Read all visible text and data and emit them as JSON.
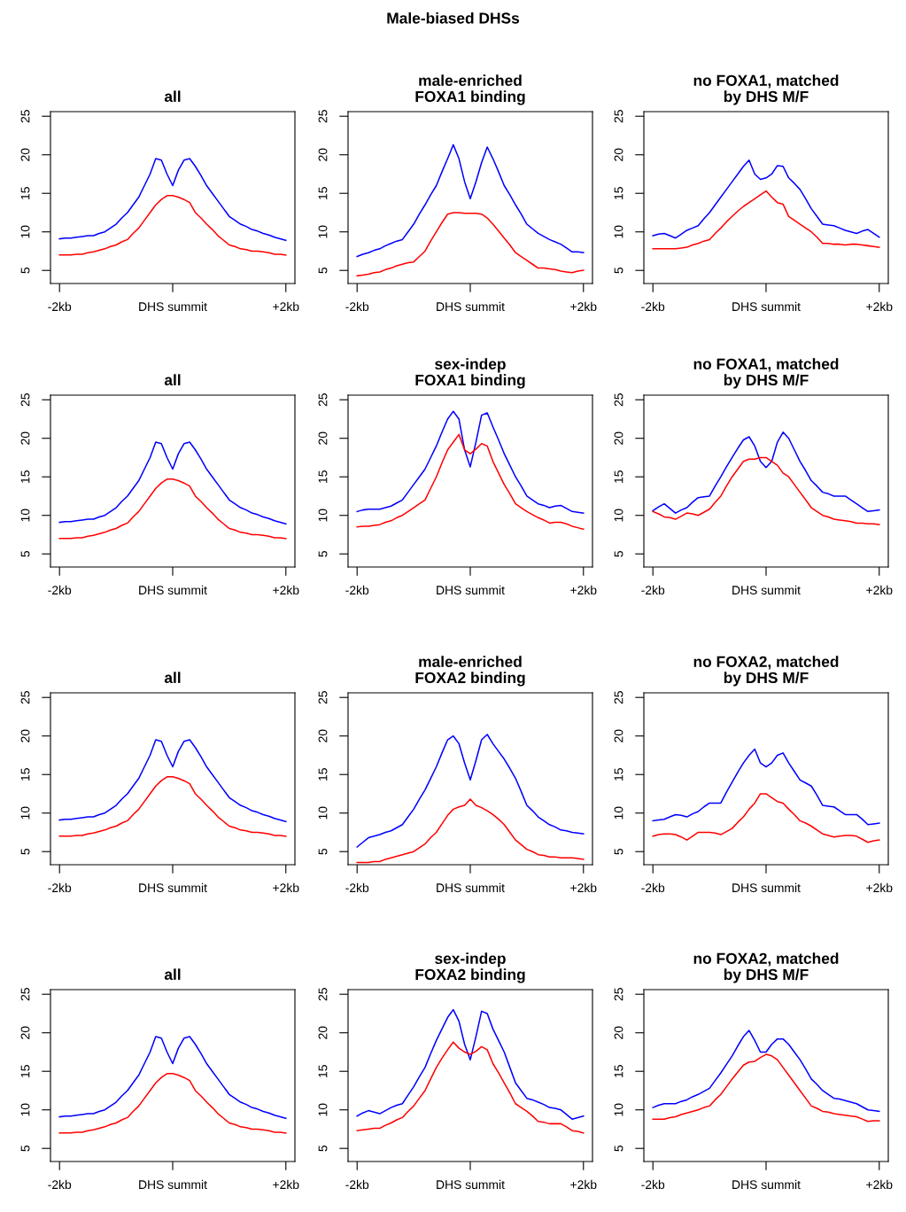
{
  "chart_data": [
    {
      "type": "line",
      "title": "all",
      "categories": [
        "-2kb",
        null,
        null,
        null,
        null,
        null,
        null,
        null,
        null,
        null,
        null,
        null,
        null,
        null,
        null,
        null,
        null,
        null,
        null,
        null,
        "DHS summit",
        null,
        null,
        null,
        null,
        null,
        null,
        null,
        null,
        null,
        null,
        null,
        null,
        null,
        null,
        null,
        null,
        null,
        null,
        null,
        "+2kb"
      ],
      "ylim": [
        3.3,
        25.6
      ],
      "yticks": [
        5,
        10,
        15,
        20,
        25
      ],
      "series": [
        {
          "color": "#0000ff",
          "values": [
            9.1,
            9.2,
            9.2,
            9.3,
            9.4,
            9.5,
            9.5,
            9.8,
            10,
            10.5,
            11,
            11.8,
            12.5,
            13.5,
            14.5,
            16,
            17.5,
            19.5,
            19.3,
            17.5,
            16,
            18,
            19.3,
            19.5,
            18.5,
            17.3,
            16,
            15,
            14,
            13,
            12,
            11.5,
            11,
            10.7,
            10.3,
            10.1,
            9.8,
            9.6,
            9.3,
            9.1,
            8.9
          ]
        },
        {
          "color": "#ff0000",
          "values": [
            7,
            7,
            7,
            7.1,
            7.1,
            7.3,
            7.4,
            7.6,
            7.8,
            8.1,
            8.3,
            8.7,
            9,
            9.8,
            10.5,
            11.5,
            12.5,
            13.5,
            14.2,
            14.7,
            14.7,
            14.5,
            14.2,
            13.8,
            12.5,
            11.8,
            11,
            10.3,
            9.5,
            8.9,
            8.3,
            8.1,
            7.8,
            7.7,
            7.5,
            7.5,
            7.4,
            7.3,
            7.1,
            7.1,
            7
          ]
        }
      ]
    },
    {
      "type": "line",
      "title": "male-enriched\nFOXA1 binding",
      "annotations": [
        "Male-biased DHSs"
      ],
      "categories": [
        "-2kb",
        null,
        null,
        null,
        null,
        null,
        null,
        null,
        null,
        null,
        null,
        null,
        null,
        null,
        null,
        null,
        null,
        null,
        null,
        null,
        "DHS summit",
        null,
        null,
        null,
        null,
        null,
        null,
        null,
        null,
        null,
        null,
        null,
        null,
        null,
        null,
        null,
        null,
        null,
        null,
        null,
        "+2kb"
      ],
      "ylim": [
        3.3,
        25.6
      ],
      "yticks": [
        5,
        10,
        15,
        20,
        25
      ],
      "series": [
        {
          "color": "#0000ff",
          "values": [
            6.8,
            7.1,
            7.3,
            7.6,
            7.8,
            8.2,
            8.5,
            8.8,
            9,
            10,
            11,
            12.3,
            13.5,
            14.8,
            16,
            17.8,
            19.5,
            21.3,
            19.5,
            16.5,
            14.3,
            16.5,
            19,
            21,
            19.5,
            17.8,
            16,
            14.8,
            13.5,
            12.3,
            11,
            10.4,
            9.8,
            9.4,
            9,
            8.7,
            8.4,
            7.9,
            7.4,
            7.4,
            7.3
          ]
        },
        {
          "color": "#ff0000",
          "values": [
            4.3,
            4.4,
            4.5,
            4.7,
            4.8,
            5.1,
            5.3,
            5.6,
            5.8,
            6,
            6.1,
            6.8,
            7.5,
            8.8,
            10,
            11.2,
            12.3,
            12.5,
            12.5,
            12.4,
            12.4,
            12.4,
            12.3,
            11.8,
            11,
            10.1,
            9.2,
            8.3,
            7.3,
            6.8,
            6.3,
            5.8,
            5.3,
            5.3,
            5.2,
            5.1,
            4.9,
            4.8,
            4.7,
            4.9,
            5
          ]
        }
      ]
    },
    {
      "type": "line",
      "title": "no FOXA1, matched\nby DHS M/F",
      "categories": [
        "-2kb",
        null,
        null,
        null,
        null,
        null,
        null,
        null,
        null,
        null,
        null,
        null,
        null,
        null,
        null,
        null,
        null,
        null,
        null,
        null,
        "DHS summit",
        null,
        null,
        null,
        null,
        null,
        null,
        null,
        null,
        null,
        null,
        null,
        null,
        null,
        null,
        null,
        null,
        null,
        null,
        null,
        "+2kb"
      ],
      "ylim": [
        3.3,
        25.6
      ],
      "yticks": [
        5,
        10,
        15,
        20,
        25
      ],
      "series": [
        {
          "color": "#0000ff",
          "values": [
            9.5,
            9.7,
            9.8,
            9.5,
            9.2,
            9.7,
            10.2,
            10.5,
            10.8,
            11.7,
            12.5,
            13.5,
            14.5,
            15.5,
            16.5,
            17.5,
            18.5,
            19.3,
            17.5,
            16.8,
            17,
            17.5,
            18.6,
            18.5,
            17,
            16.3,
            15.5,
            14.3,
            13,
            12,
            11,
            10.9,
            10.8,
            10.5,
            10.2,
            10,
            9.8,
            10.1,
            10.3,
            9.8,
            9.3
          ]
        },
        {
          "color": "#ff0000",
          "values": [
            7.8,
            7.8,
            7.8,
            7.8,
            7.8,
            7.9,
            8,
            8.3,
            8.5,
            8.8,
            9,
            9.8,
            10.5,
            11.3,
            12,
            12.7,
            13.3,
            13.8,
            14.3,
            14.8,
            15.3,
            14.5,
            13.8,
            13.6,
            12,
            11.5,
            11,
            10.5,
            10,
            9.3,
            8.5,
            8.5,
            8.4,
            8.4,
            8.3,
            8.4,
            8.4,
            8.3,
            8.2,
            8.1,
            8
          ]
        }
      ]
    },
    {
      "type": "line",
      "title": "all",
      "categories": [
        "-2kb",
        null,
        null,
        null,
        null,
        null,
        null,
        null,
        null,
        null,
        null,
        null,
        null,
        null,
        null,
        null,
        null,
        null,
        null,
        null,
        "DHS summit",
        null,
        null,
        null,
        null,
        null,
        null,
        null,
        null,
        null,
        null,
        null,
        null,
        null,
        null,
        null,
        null,
        null,
        null,
        null,
        "+2kb"
      ],
      "ylim": [
        3.3,
        25.6
      ],
      "yticks": [
        5,
        10,
        15,
        20,
        25
      ],
      "series": [
        {
          "color": "#0000ff",
          "values": [
            9.1,
            9.2,
            9.2,
            9.3,
            9.4,
            9.5,
            9.5,
            9.8,
            10,
            10.5,
            11,
            11.8,
            12.5,
            13.5,
            14.5,
            16,
            17.5,
            19.5,
            19.3,
            17.5,
            16,
            18,
            19.3,
            19.5,
            18.5,
            17.3,
            16,
            15,
            14,
            13,
            12,
            11.5,
            11,
            10.7,
            10.3,
            10.1,
            9.8,
            9.6,
            9.3,
            9.1,
            8.9
          ]
        },
        {
          "color": "#ff0000",
          "values": [
            7,
            7,
            7,
            7.1,
            7.1,
            7.3,
            7.4,
            7.6,
            7.8,
            8.1,
            8.3,
            8.7,
            9,
            9.8,
            10.5,
            11.5,
            12.5,
            13.5,
            14.2,
            14.7,
            14.7,
            14.5,
            14.2,
            13.8,
            12.5,
            11.8,
            11,
            10.3,
            9.5,
            8.9,
            8.3,
            8.1,
            7.8,
            7.7,
            7.5,
            7.5,
            7.4,
            7.3,
            7.1,
            7.1,
            7
          ]
        }
      ]
    },
    {
      "type": "line",
      "title": "sex-indep\nFOXA1 binding",
      "categories": [
        "-2kb",
        null,
        null,
        null,
        null,
        null,
        null,
        null,
        null,
        null,
        null,
        null,
        null,
        null,
        null,
        null,
        null,
        null,
        null,
        null,
        "DHS summit",
        null,
        null,
        null,
        null,
        null,
        null,
        null,
        null,
        null,
        null,
        null,
        null,
        null,
        null,
        null,
        null,
        null,
        null,
        null,
        "+2kb"
      ],
      "ylim": [
        3.3,
        25.6
      ],
      "yticks": [
        5,
        10,
        15,
        20,
        25
      ],
      "series": [
        {
          "color": "#0000ff",
          "values": [
            10.5,
            10.7,
            10.8,
            10.8,
            10.8,
            11,
            11.2,
            11.6,
            12,
            13,
            14,
            15,
            16,
            17.5,
            19,
            20.8,
            22.5,
            23.5,
            22.5,
            18.5,
            16.3,
            19.5,
            23,
            23.3,
            21.5,
            19.8,
            18,
            16.5,
            15,
            13.8,
            12.5,
            12,
            11.5,
            11.3,
            11,
            11.2,
            11.3,
            10.9,
            10.5,
            10.4,
            10.3
          ]
        },
        {
          "color": "#ff0000",
          "values": [
            8.5,
            8.6,
            8.6,
            8.7,
            8.8,
            9.1,
            9.3,
            9.7,
            10,
            10.5,
            11,
            11.5,
            12,
            13.5,
            15,
            16.8,
            18.5,
            19.5,
            20.5,
            18.5,
            18,
            18.6,
            19.3,
            19,
            17,
            15.5,
            14,
            12.8,
            11.5,
            11,
            10.5,
            10.1,
            9.7,
            9.4,
            9,
            9.1,
            9.1,
            8.9,
            8.6,
            8.4,
            8.2
          ]
        }
      ]
    },
    {
      "type": "line",
      "title": "no FOXA1, matched\nby DHS M/F",
      "categories": [
        "-2kb",
        null,
        null,
        null,
        null,
        null,
        null,
        null,
        null,
        null,
        null,
        null,
        null,
        null,
        null,
        null,
        null,
        null,
        null,
        null,
        "DHS summit",
        null,
        null,
        null,
        null,
        null,
        null,
        null,
        null,
        null,
        null,
        null,
        null,
        null,
        null,
        null,
        null,
        null,
        null,
        null,
        "+2kb"
      ],
      "ylim": [
        3.3,
        25.6
      ],
      "yticks": [
        5,
        10,
        15,
        20,
        25
      ],
      "series": [
        {
          "color": "#0000ff",
          "values": [
            10.6,
            11.1,
            11.5,
            10.9,
            10.3,
            10.7,
            11,
            11.7,
            12.3,
            12.4,
            12.5,
            13.8,
            15,
            16.3,
            17.5,
            18.7,
            19.8,
            20.2,
            19,
            17,
            16.2,
            17,
            19.5,
            20.8,
            20,
            18.5,
            17,
            15.8,
            14.5,
            13.8,
            13,
            12.8,
            12.5,
            12.5,
            12.5,
            12,
            11.5,
            11,
            10.5,
            10.6,
            10.7
          ]
        },
        {
          "color": "#ff0000",
          "values": [
            10.5,
            10.2,
            9.8,
            9.7,
            9.5,
            9.9,
            10.3,
            10.2,
            10,
            10.4,
            10.8,
            11.7,
            12.5,
            13.8,
            15,
            16,
            17,
            17.3,
            17.3,
            17.5,
            17.5,
            17,
            16.5,
            15.5,
            15,
            14,
            13,
            12,
            11,
            10.5,
            10,
            9.8,
            9.5,
            9.4,
            9.3,
            9.2,
            9,
            9,
            8.9,
            8.9,
            8.8
          ]
        }
      ]
    },
    {
      "type": "line",
      "title": "all",
      "categories": [
        "-2kb",
        null,
        null,
        null,
        null,
        null,
        null,
        null,
        null,
        null,
        null,
        null,
        null,
        null,
        null,
        null,
        null,
        null,
        null,
        null,
        "DHS summit",
        null,
        null,
        null,
        null,
        null,
        null,
        null,
        null,
        null,
        null,
        null,
        null,
        null,
        null,
        null,
        null,
        null,
        null,
        null,
        "+2kb"
      ],
      "ylim": [
        3.3,
        25.6
      ],
      "yticks": [
        5,
        10,
        15,
        20,
        25
      ],
      "series": [
        {
          "color": "#0000ff",
          "values": [
            9.1,
            9.2,
            9.2,
            9.3,
            9.4,
            9.5,
            9.5,
            9.8,
            10,
            10.5,
            11,
            11.8,
            12.5,
            13.5,
            14.5,
            16,
            17.5,
            19.5,
            19.3,
            17.5,
            16,
            18,
            19.3,
            19.5,
            18.5,
            17.3,
            16,
            15,
            14,
            13,
            12,
            11.5,
            11,
            10.7,
            10.3,
            10.1,
            9.8,
            9.6,
            9.3,
            9.1,
            8.9
          ]
        },
        {
          "color": "#ff0000",
          "values": [
            7,
            7,
            7,
            7.1,
            7.1,
            7.3,
            7.4,
            7.6,
            7.8,
            8.1,
            8.3,
            8.7,
            9,
            9.8,
            10.5,
            11.5,
            12.5,
            13.5,
            14.2,
            14.7,
            14.7,
            14.5,
            14.2,
            13.8,
            12.5,
            11.8,
            11,
            10.3,
            9.5,
            8.9,
            8.3,
            8.1,
            7.8,
            7.7,
            7.5,
            7.5,
            7.4,
            7.3,
            7.1,
            7.1,
            7
          ]
        }
      ]
    },
    {
      "type": "line",
      "title": "male-enriched\nFOXA2 binding",
      "categories": [
        "-2kb",
        null,
        null,
        null,
        null,
        null,
        null,
        null,
        null,
        null,
        null,
        null,
        null,
        null,
        null,
        null,
        null,
        null,
        null,
        null,
        "DHS summit",
        null,
        null,
        null,
        null,
        null,
        null,
        null,
        null,
        null,
        null,
        null,
        null,
        null,
        null,
        null,
        null,
        null,
        null,
        null,
        "+2kb"
      ],
      "ylim": [
        3.3,
        25.6
      ],
      "yticks": [
        5,
        10,
        15,
        20,
        25
      ],
      "series": [
        {
          "color": "#0000ff",
          "values": [
            5.6,
            6.2,
            6.8,
            7,
            7.2,
            7.5,
            7.7,
            8.1,
            8.5,
            9.5,
            10.5,
            11.8,
            13,
            14.5,
            16,
            17.8,
            19.5,
            20,
            19,
            16.5,
            14.3,
            16.8,
            19.5,
            20.2,
            19,
            18,
            17,
            15.8,
            14.5,
            12.8,
            11,
            10.3,
            9.5,
            9,
            8.5,
            8.2,
            7.8,
            7.7,
            7.5,
            7.4,
            7.3
          ]
        },
        {
          "color": "#ff0000",
          "values": [
            3.6,
            3.6,
            3.6,
            3.7,
            3.7,
            4,
            4.2,
            4.4,
            4.6,
            4.8,
            5,
            5.5,
            6,
            6.8,
            7.5,
            8.6,
            9.7,
            10.5,
            10.8,
            11,
            11.8,
            11,
            10.7,
            10.3,
            9.8,
            9.2,
            8.5,
            7.5,
            6.5,
            5.9,
            5.3,
            5,
            4.6,
            4.5,
            4.3,
            4.3,
            4.2,
            4.2,
            4.2,
            4.1,
            4
          ]
        }
      ]
    },
    {
      "type": "line",
      "title": "no FOXA2, matched\nby DHS M/F",
      "categories": [
        "-2kb",
        null,
        null,
        null,
        null,
        null,
        null,
        null,
        null,
        null,
        null,
        null,
        null,
        null,
        null,
        null,
        null,
        null,
        null,
        null,
        "DHS summit",
        null,
        null,
        null,
        null,
        null,
        null,
        null,
        null,
        null,
        null,
        null,
        null,
        null,
        null,
        null,
        null,
        null,
        null,
        null,
        "+2kb"
      ],
      "ylim": [
        3.3,
        25.6
      ],
      "yticks": [
        5,
        10,
        15,
        20,
        25
      ],
      "series": [
        {
          "color": "#0000ff",
          "values": [
            9,
            9.1,
            9.2,
            9.5,
            9.8,
            9.7,
            9.5,
            9.9,
            10.2,
            10.8,
            11.3,
            11.3,
            11.3,
            12.7,
            14,
            15.3,
            16.5,
            17.5,
            18.3,
            16.5,
            16,
            16.5,
            17.5,
            17.8,
            16.5,
            15.4,
            14.3,
            13.9,
            13.5,
            12.3,
            11,
            10.9,
            10.8,
            10.3,
            9.8,
            9.8,
            9.8,
            9.2,
            8.5,
            8.6,
            8.7
          ]
        },
        {
          "color": "#ff0000",
          "values": [
            7,
            7.2,
            7.3,
            7.3,
            7.2,
            6.9,
            6.5,
            7,
            7.5,
            7.5,
            7.5,
            7.4,
            7.2,
            7.6,
            8,
            8.8,
            9.5,
            10.5,
            11.3,
            12.5,
            12.5,
            12,
            11.5,
            11.3,
            10.5,
            9.8,
            9,
            8.7,
            8.3,
            7.8,
            7.3,
            7.1,
            6.9,
            7,
            7.1,
            7.1,
            7,
            6.6,
            6.2,
            6.4,
            6.5
          ]
        }
      ]
    },
    {
      "type": "line",
      "title": "all",
      "categories": [
        "-2kb",
        null,
        null,
        null,
        null,
        null,
        null,
        null,
        null,
        null,
        null,
        null,
        null,
        null,
        null,
        null,
        null,
        null,
        null,
        null,
        "DHS summit",
        null,
        null,
        null,
        null,
        null,
        null,
        null,
        null,
        null,
        null,
        null,
        null,
        null,
        null,
        null,
        null,
        null,
        null,
        null,
        "+2kb"
      ],
      "ylim": [
        3.3,
        25.6
      ],
      "yticks": [
        5,
        10,
        15,
        20,
        25
      ],
      "series": [
        {
          "color": "#0000ff",
          "values": [
            9.1,
            9.2,
            9.2,
            9.3,
            9.4,
            9.5,
            9.5,
            9.8,
            10,
            10.5,
            11,
            11.8,
            12.5,
            13.5,
            14.5,
            16,
            17.5,
            19.5,
            19.3,
            17.5,
            16,
            18,
            19.3,
            19.5,
            18.5,
            17.3,
            16,
            15,
            14,
            13,
            12,
            11.5,
            11,
            10.7,
            10.3,
            10.1,
            9.8,
            9.6,
            9.3,
            9.1,
            8.9
          ]
        },
        {
          "color": "#ff0000",
          "values": [
            7,
            7,
            7,
            7.1,
            7.1,
            7.3,
            7.4,
            7.6,
            7.8,
            8.1,
            8.3,
            8.7,
            9,
            9.8,
            10.5,
            11.5,
            12.5,
            13.5,
            14.2,
            14.7,
            14.7,
            14.5,
            14.2,
            13.8,
            12.5,
            11.8,
            11,
            10.3,
            9.5,
            8.9,
            8.3,
            8.1,
            7.8,
            7.7,
            7.5,
            7.5,
            7.4,
            7.3,
            7.1,
            7.1,
            7
          ]
        }
      ]
    },
    {
      "type": "line",
      "title": "sex-indep\nFOXA2 binding",
      "categories": [
        "-2kb",
        null,
        null,
        null,
        null,
        null,
        null,
        null,
        null,
        null,
        null,
        null,
        null,
        null,
        null,
        null,
        null,
        null,
        null,
        null,
        "DHS summit",
        null,
        null,
        null,
        null,
        null,
        null,
        null,
        null,
        null,
        null,
        null,
        null,
        null,
        null,
        null,
        null,
        null,
        null,
        null,
        "+2kb"
      ],
      "ylim": [
        3.3,
        25.6
      ],
      "yticks": [
        5,
        10,
        15,
        20,
        25
      ],
      "series": [
        {
          "color": "#0000ff",
          "values": [
            9.2,
            9.6,
            9.9,
            9.7,
            9.5,
            9.9,
            10.3,
            10.6,
            10.8,
            11.9,
            13,
            14.3,
            15.5,
            17.3,
            19,
            20.5,
            22,
            23,
            21.5,
            18.5,
            16.5,
            19.5,
            22.8,
            22.5,
            20.5,
            19,
            17.5,
            15.5,
            13.5,
            12.5,
            11.5,
            11.3,
            11,
            10.7,
            10.3,
            10.2,
            10,
            9.4,
            8.8,
            9,
            9.2
          ]
        },
        {
          "color": "#ff0000",
          "values": [
            7.3,
            7.4,
            7.5,
            7.6,
            7.6,
            8,
            8.3,
            8.7,
            9,
            9.8,
            10.5,
            11.5,
            12.5,
            14,
            15.5,
            16.7,
            17.8,
            18.8,
            18,
            17.5,
            17.2,
            17.6,
            18.2,
            17.8,
            16,
            14.8,
            13.5,
            12.2,
            10.8,
            10.3,
            9.8,
            9.2,
            8.5,
            8.4,
            8.2,
            8.2,
            8.2,
            7.8,
            7.3,
            7.2,
            7
          ]
        }
      ]
    },
    {
      "type": "line",
      "title": "no FOXA2, matched\nby DHS M/F",
      "categories": [
        "-2kb",
        null,
        null,
        null,
        null,
        null,
        null,
        null,
        null,
        null,
        null,
        null,
        null,
        null,
        null,
        null,
        null,
        null,
        null,
        null,
        "DHS summit",
        null,
        null,
        null,
        null,
        null,
        null,
        null,
        null,
        null,
        null,
        null,
        null,
        null,
        null,
        null,
        null,
        null,
        null,
        null,
        "+2kb"
      ],
      "ylim": [
        3.3,
        25.6
      ],
      "yticks": [
        5,
        10,
        15,
        20,
        25
      ],
      "series": [
        {
          "color": "#0000ff",
          "values": [
            10.3,
            10.6,
            10.8,
            10.8,
            10.8,
            11.1,
            11.3,
            11.7,
            12,
            12.4,
            12.8,
            13.8,
            14.8,
            15.9,
            17,
            18.3,
            19.5,
            20.3,
            19,
            17.5,
            17.5,
            18.5,
            19.2,
            19.2,
            18.5,
            17.5,
            16.5,
            15.3,
            14,
            13.3,
            12.5,
            12,
            11.5,
            11.4,
            11.2,
            11,
            10.8,
            10.4,
            10,
            9.9,
            9.8
          ]
        },
        {
          "color": "#ff0000",
          "values": [
            8.8,
            8.8,
            8.8,
            9,
            9.1,
            9.4,
            9.6,
            9.8,
            10,
            10.3,
            10.5,
            11.3,
            12,
            13,
            14,
            14.9,
            15.8,
            16.2,
            16.3,
            16.8,
            17.2,
            17,
            16.5,
            15.5,
            14.5,
            13.5,
            12.5,
            11.5,
            10.5,
            10.2,
            9.8,
            9.7,
            9.5,
            9.4,
            9.3,
            9.2,
            9.1,
            8.8,
            8.5,
            8.6,
            8.6
          ]
        }
      ]
    }
  ]
}
